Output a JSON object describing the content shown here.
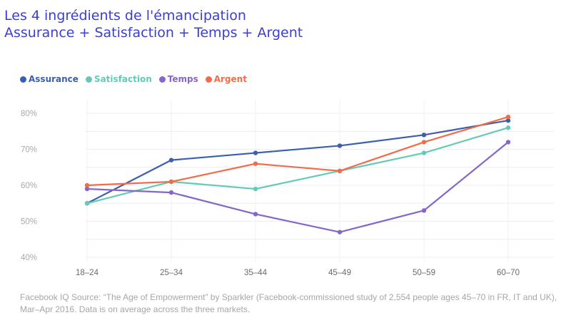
{
  "header": {
    "title_line1": "Les 4 ingrédients de l'émancipation",
    "title_line2": "Assurance + Satisfaction + Temps + Argent"
  },
  "chart_data": {
    "type": "line",
    "title": "Les 4 ingrédients de l'émancipation — Assurance + Satisfaction + Temps + Argent",
    "xlabel": "",
    "ylabel": "",
    "categories": [
      "18–24",
      "25–34",
      "35–44",
      "45–49",
      "50–59",
      "60–70"
    ],
    "y_ticks": [
      40,
      50,
      60,
      70,
      80
    ],
    "y_tick_labels": [
      "40%",
      "50%",
      "60%",
      "70%",
      "80%"
    ],
    "ylim": [
      40,
      80
    ],
    "grid": true,
    "legend_position": "top-left",
    "series": [
      {
        "name": "Assurance",
        "color": "#3b5eae",
        "values": [
          55,
          67,
          69,
          71,
          74,
          78
        ]
      },
      {
        "name": "Satisfaction",
        "color": "#63cbb5",
        "values": [
          55,
          61,
          59,
          64,
          69,
          76
        ]
      },
      {
        "name": "Temps",
        "color": "#8566c9",
        "values": [
          59,
          58,
          52,
          47,
          53,
          72
        ]
      },
      {
        "name": "Argent",
        "color": "#f26b4a",
        "values": [
          60,
          61,
          66,
          64,
          72,
          79
        ]
      }
    ]
  },
  "footer": {
    "source_line1": "Facebook IQ Source: “The Age of Empowerment” by Sparkler (Facebook-commissioned study of 2,554 people ages 45–70 in FR, IT and UK),",
    "source_line2": "Mar–Apr 2016. Data is on average across the three markets."
  }
}
